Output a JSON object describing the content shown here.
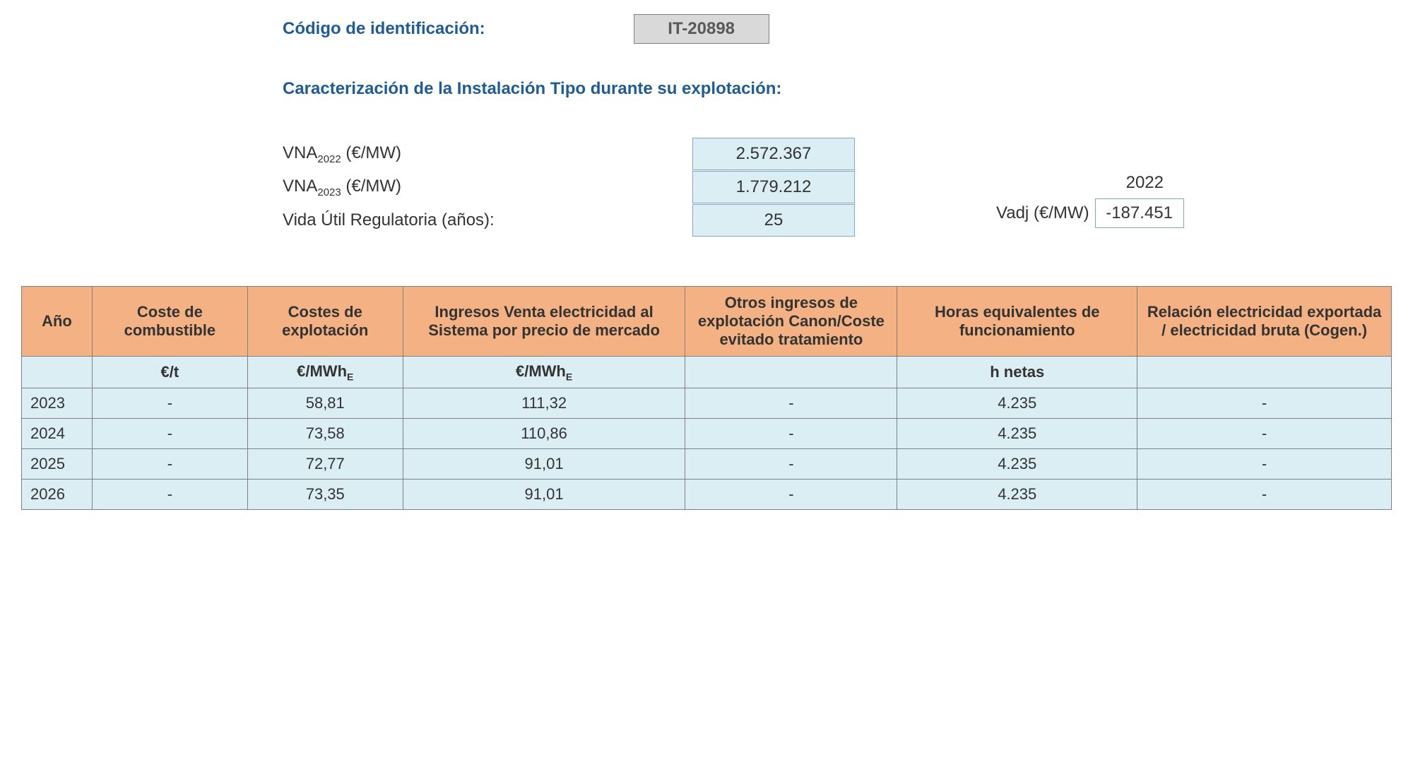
{
  "header": {
    "id_label": "Código de identificación:",
    "id_value": "IT-20898",
    "section_title": "Caracterización de la Instalación Tipo durante su explotación:"
  },
  "params": {
    "vna2022_label_prefix": "VNA",
    "vna2022_sub": "2022",
    "vna2022_label_suffix": " (€/MW)",
    "vna2022_value": "2.572.367",
    "vna2023_label_prefix": "VNA",
    "vna2023_sub": "2023",
    "vna2023_label_suffix": " (€/MW)",
    "vna2023_value": "1.779.212",
    "vida_label": "Vida Útil Regulatoria (años):",
    "vida_value": "25"
  },
  "side": {
    "year": "2022",
    "vadj_label": "Vadj (€/MW)",
    "vadj_value": "-187.451"
  },
  "table": {
    "headers": {
      "c0": "Año",
      "c1": "Coste de combustible",
      "c2": "Costes de explotación",
      "c3": "Ingresos Venta electricidad al Sistema por precio de mercado",
      "c4": "Otros ingresos de explotación Canon/Coste evitado tratamiento",
      "c5": "Horas equivalentes de funcionamiento",
      "c6": "Relación electricidad exportada / electricidad bruta (Cogen.)"
    },
    "units": {
      "c0": "",
      "c1": "€/t",
      "c2_prefix": "€/MWh",
      "c2_sub": "E",
      "c3_prefix": "€/MWh",
      "c3_sub": "E",
      "c4": "",
      "c5": "h netas",
      "c6": ""
    },
    "rows": [
      {
        "year": "2023",
        "c1": "-",
        "c2": "58,81",
        "c3": "111,32",
        "c4": "-",
        "c5": "4.235",
        "c6": "-"
      },
      {
        "year": "2024",
        "c1": "-",
        "c2": "73,58",
        "c3": "110,86",
        "c4": "-",
        "c5": "4.235",
        "c6": "-"
      },
      {
        "year": "2025",
        "c1": "-",
        "c2": "72,77",
        "c3": "91,01",
        "c4": "-",
        "c5": "4.235",
        "c6": "-"
      },
      {
        "year": "2026",
        "c1": "-",
        "c2": "73,35",
        "c3": "91,01",
        "c4": "-",
        "c5": "4.235",
        "c6": "-"
      }
    ]
  },
  "col_widths": {
    "c0": "5%",
    "c1": "11%",
    "c2": "11%",
    "c3": "20%",
    "c4": "15%",
    "c5": "17%",
    "c6": "18%"
  }
}
